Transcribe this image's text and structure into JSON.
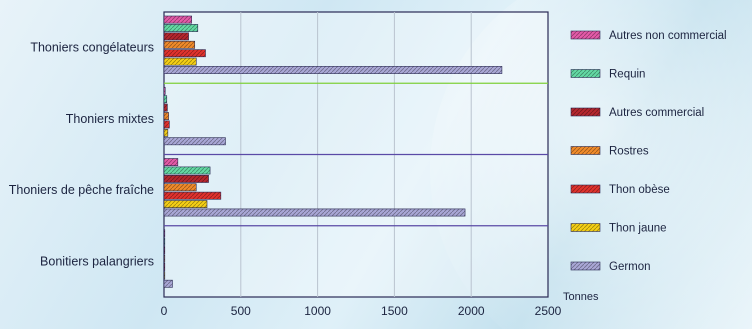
{
  "chart_data": {
    "type": "bar",
    "orientation": "horizontal",
    "categories": [
      "Thoniers congélateurs",
      "Thoniers mixtes",
      "Thoniers de pêche fraîche",
      "Bonitiers palangriers"
    ],
    "series": [
      {
        "name": "Autres non commercial",
        "color": "#e45aa8",
        "values": [
          180,
          8,
          90,
          2
        ]
      },
      {
        "name": "Requin",
        "color": "#63d9a3",
        "values": [
          220,
          18,
          300,
          4
        ]
      },
      {
        "name": "Autres commercial",
        "color": "#b5262e",
        "values": [
          160,
          22,
          290,
          4
        ]
      },
      {
        "name": "Rostres",
        "color": "#f08a2a",
        "values": [
          200,
          30,
          210,
          4
        ]
      },
      {
        "name": "Thon obèse",
        "color": "#e1322d",
        "values": [
          270,
          35,
          370,
          3
        ]
      },
      {
        "name": "Thon jaune",
        "color": "#f5cf15",
        "values": [
          210,
          25,
          280,
          3
        ]
      },
      {
        "name": "Germon",
        "color": "#a9a7d6",
        "values": [
          2200,
          400,
          1960,
          55
        ]
      }
    ],
    "x_ticks": [
      "0",
      "500",
      "1000",
      "1500",
      "2000",
      "2500"
    ],
    "xlim": [
      0,
      2500
    ],
    "xlabel": "Tonnes",
    "grid": true,
    "legend_position": "right"
  }
}
